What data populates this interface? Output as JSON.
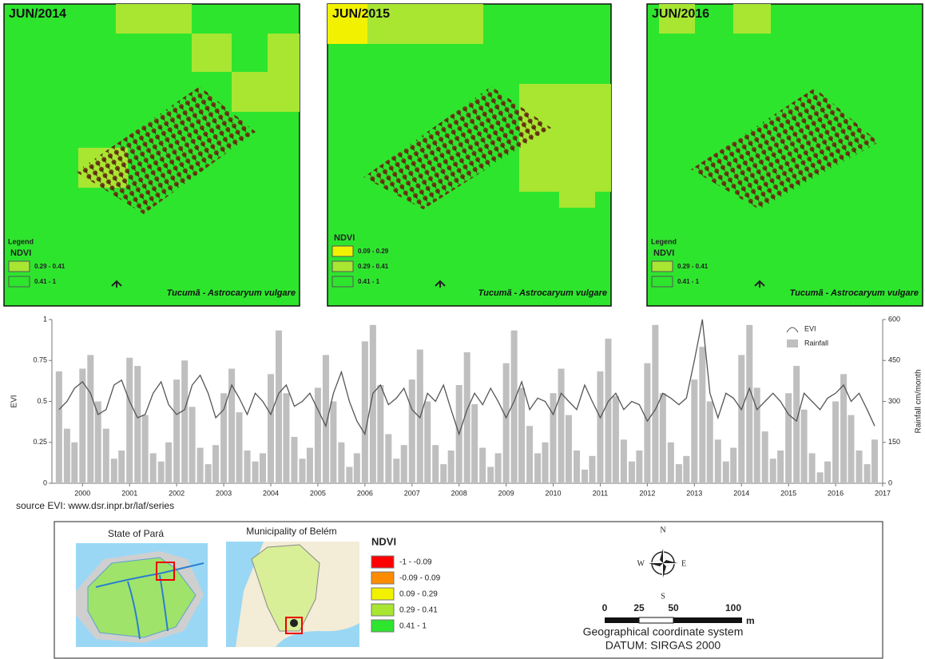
{
  "maps": [
    {
      "title": "JUN/2014",
      "legend_heading": "Legend",
      "legend_title": "NDVI",
      "legend_items": [
        {
          "label": "0.29 - 0.41",
          "color": "#a8e632"
        },
        {
          "label": "0.41 - 1",
          "color": "#2ee52e"
        }
      ],
      "species": "Tucumã - Astrocaryum vulgare"
    },
    {
      "title": "JUN/2015",
      "legend_title": "NDVI",
      "legend_items": [
        {
          "label": "0.09 - 0.29",
          "color": "#f2f200"
        },
        {
          "label": "0.29 - 0.41",
          "color": "#a8e632"
        },
        {
          "label": "0.41 - 1",
          "color": "#2ee52e"
        }
      ],
      "species": "Tucumã - Astrocaryum vulgare"
    },
    {
      "title": "JUN/2016",
      "legend_heading": "Legend",
      "legend_title": "NDVI",
      "legend_items": [
        {
          "label": "0.29 - 0.41",
          "color": "#a8e632"
        },
        {
          "label": "0.41 - 1",
          "color": "#2ee52e"
        }
      ],
      "species": "Tucumã - Astrocaryum vulgare"
    }
  ],
  "chart_data": {
    "type": "bar-line",
    "y_label": "EVI",
    "y2_label": "Rainfall cm/month",
    "x": [
      1999.5,
      1999.67,
      1999.83,
      2000.0,
      2000.17,
      2000.33,
      2000.5,
      2000.67,
      2000.83,
      2001.0,
      2001.17,
      2001.33,
      2001.5,
      2001.67,
      2001.83,
      2002.0,
      2002.17,
      2002.33,
      2002.5,
      2002.67,
      2002.83,
      2003.0,
      2003.17,
      2003.33,
      2003.5,
      2003.67,
      2003.83,
      2004.0,
      2004.17,
      2004.33,
      2004.5,
      2004.67,
      2004.83,
      2005.0,
      2005.17,
      2005.33,
      2005.5,
      2005.67,
      2005.83,
      2006.0,
      2006.17,
      2006.33,
      2006.5,
      2006.67,
      2006.83,
      2007.0,
      2007.17,
      2007.33,
      2007.5,
      2007.67,
      2007.83,
      2008.0,
      2008.17,
      2008.33,
      2008.5,
      2008.67,
      2008.83,
      2009.0,
      2009.17,
      2009.33,
      2009.5,
      2009.67,
      2009.83,
      2010.0,
      2010.17,
      2010.33,
      2010.5,
      2010.67,
      2010.83,
      2011.0,
      2011.17,
      2011.33,
      2011.5,
      2011.67,
      2011.83,
      2012.0,
      2012.17,
      2012.33,
      2012.5,
      2012.67,
      2012.83,
      2013.0,
      2013.17,
      2013.33,
      2013.5,
      2013.67,
      2013.83,
      2014.0,
      2014.17,
      2014.33,
      2014.5,
      2014.67,
      2014.83,
      2015.0,
      2015.17,
      2015.33,
      2015.5,
      2015.67,
      2015.83,
      2016.0,
      2016.17,
      2016.33,
      2016.5,
      2016.67,
      2016.83
    ],
    "series": [
      {
        "name": "EVI",
        "color": "#555555",
        "values": [
          0.45,
          0.5,
          0.58,
          0.62,
          0.55,
          0.42,
          0.45,
          0.6,
          0.63,
          0.5,
          0.4,
          0.42,
          0.55,
          0.62,
          0.48,
          0.42,
          0.45,
          0.6,
          0.66,
          0.55,
          0.4,
          0.45,
          0.6,
          0.52,
          0.42,
          0.55,
          0.5,
          0.42,
          0.55,
          0.6,
          0.47,
          0.5,
          0.55,
          0.45,
          0.35,
          0.55,
          0.68,
          0.5,
          0.38,
          0.3,
          0.55,
          0.6,
          0.48,
          0.52,
          0.58,
          0.45,
          0.4,
          0.55,
          0.5,
          0.6,
          0.45,
          0.3,
          0.45,
          0.55,
          0.48,
          0.58,
          0.5,
          0.4,
          0.5,
          0.62,
          0.45,
          0.52,
          0.5,
          0.42,
          0.55,
          0.5,
          0.45,
          0.6,
          0.5,
          0.4,
          0.5,
          0.55,
          0.45,
          0.5,
          0.48,
          0.38,
          0.45,
          0.55,
          0.52,
          0.48,
          0.52,
          0.75,
          1.0,
          0.55,
          0.4,
          0.55,
          0.52,
          0.45,
          0.58,
          0.45,
          0.5,
          0.55,
          0.5,
          0.42,
          0.38,
          0.55,
          0.5,
          0.45,
          0.52,
          0.55,
          0.6,
          0.5,
          0.55,
          0.45,
          0.35
        ]
      },
      {
        "name": "Rainfall",
        "color": "#bfbfbf",
        "axis": "y2",
        "values": [
          410,
          200,
          150,
          420,
          470,
          300,
          200,
          90,
          120,
          460,
          430,
          250,
          110,
          80,
          150,
          380,
          450,
          280,
          130,
          70,
          140,
          330,
          420,
          260,
          120,
          80,
          110,
          400,
          560,
          330,
          170,
          90,
          130,
          350,
          470,
          300,
          150,
          60,
          110,
          520,
          580,
          360,
          180,
          90,
          140,
          380,
          490,
          300,
          140,
          70,
          120,
          360,
          480,
          290,
          130,
          60,
          110,
          440,
          560,
          350,
          210,
          110,
          150,
          330,
          420,
          250,
          120,
          50,
          100,
          410,
          530,
          320,
          160,
          80,
          120,
          440,
          580,
          330,
          150,
          70,
          100,
          380,
          500,
          300,
          160,
          80,
          130,
          470,
          580,
          350,
          190,
          90,
          120,
          330,
          430,
          270,
          110,
          40,
          80,
          300,
          400,
          250,
          120,
          70,
          160
        ]
      }
    ],
    "xlim": [
      1999.35,
      2017.0
    ],
    "xticks": [
      2000,
      2001,
      2002,
      2003,
      2004,
      2005,
      2006,
      2007,
      2008,
      2009,
      2010,
      2011,
      2012,
      2013,
      2014,
      2015,
      2016,
      2017
    ],
    "ylim": [
      0,
      1
    ],
    "yticks": [
      0,
      0.25,
      0.5,
      0.75,
      1
    ],
    "y2lim": [
      0,
      600
    ],
    "y2ticks": [
      0,
      150,
      300,
      450,
      600
    ],
    "legend": "top-right"
  },
  "source": "source EVI: www.dsr.inpr.br/laf/series",
  "inset": {
    "state_title": "State of Pará",
    "municipality_title": "Municipality of Belém",
    "ndvi_title": "NDVI",
    "classes": [
      {
        "label": "-1 - -0.09",
        "color": "#ff0000"
      },
      {
        "label": "-0.09 - 0.09",
        "color": "#ff8c00"
      },
      {
        "label": "0.09 - 0.29",
        "color": "#f2f200"
      },
      {
        "label": "0.29 - 0.41",
        "color": "#a8e632"
      },
      {
        "label": "0.41 - 1",
        "color": "#2ee52e"
      }
    ],
    "compass": {
      "n": "N",
      "s": "S",
      "e": "E",
      "w": "W"
    },
    "scale_labels": [
      0,
      25,
      50,
      100
    ],
    "scale_unit": "m",
    "crs": "Geographical coordinate system",
    "datum": "DATUM: SIRGAS 2000"
  }
}
